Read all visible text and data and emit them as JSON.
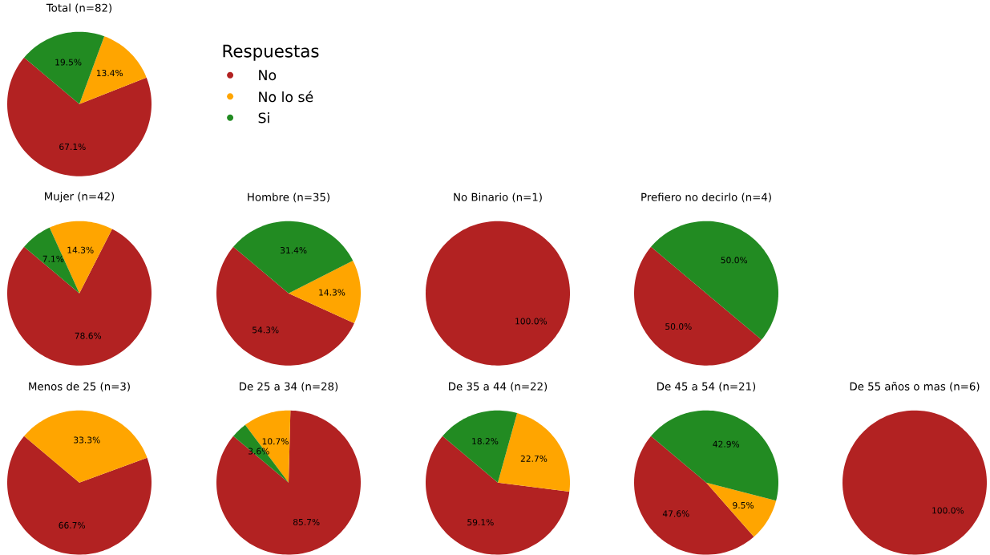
{
  "chart_data": [
    {
      "type": "pie",
      "title": "Total (n=82)",
      "categories": [
        "No",
        "No lo sé",
        "Si"
      ],
      "values": [
        67.1,
        13.4,
        19.5
      ],
      "value_labels": [
        "67.1%",
        "13.4%",
        "19.5%"
      ],
      "colors": [
        "#b22222",
        "#ffa500",
        "#228b22"
      ],
      "legend_title": "Respuestas",
      "legend": "right"
    },
    {
      "type": "pie",
      "title": "Mujer (n=42)",
      "categories": [
        null,
        null,
        null
      ],
      "values": [
        78.6,
        14.3,
        7.1
      ],
      "value_labels": [
        "78.6%",
        "14.3%",
        "7.1%"
      ],
      "colors": [
        "#b22222",
        "#ffa500",
        "#228b22"
      ]
    },
    {
      "type": "pie",
      "title": "Hombre (n=35)",
      "categories": [
        null,
        null,
        null
      ],
      "values": [
        54.3,
        14.3,
        31.4
      ],
      "value_labels": [
        "54.3%",
        "14.3%",
        "31.4%"
      ],
      "colors": [
        "#b22222",
        "#ffa500",
        "#228b22"
      ]
    },
    {
      "type": "pie",
      "title": "No Binario (n=1)",
      "categories": [
        null,
        null,
        null
      ],
      "values": [
        100,
        0,
        0
      ],
      "value_labels": [
        "100.0%",
        null,
        null
      ],
      "colors": [
        "#b22222",
        "#ffa500",
        "#228b22"
      ]
    },
    {
      "type": "pie",
      "title": "Prefiero no decirlo (n=4)",
      "categories": [
        null,
        null,
        null
      ],
      "values": [
        50,
        0,
        50
      ],
      "value_labels": [
        "50.0%",
        null,
        "50.0%"
      ],
      "colors": [
        "#b22222",
        "#ffa500",
        "#228b22"
      ]
    },
    {
      "type": "pie",
      "title": "Menos de 25 (n=3)",
      "categories": [
        null,
        null,
        null
      ],
      "values": [
        66.7,
        33.3,
        0
      ],
      "value_labels": [
        "66.7%",
        "33.3%",
        null
      ],
      "colors": [
        "#b22222",
        "#ffa500",
        "#228b22"
      ]
    },
    {
      "type": "pie",
      "title": "De 25 a 34 (n=28)",
      "categories": [
        null,
        null,
        null
      ],
      "values": [
        85.7,
        10.7,
        3.6
      ],
      "value_labels": [
        "85.7%",
        "10.7%",
        "3.6%"
      ],
      "colors": [
        "#b22222",
        "#ffa500",
        "#228b22"
      ]
    },
    {
      "type": "pie",
      "title": "De 35 a 44 (n=22)",
      "categories": [
        null,
        null,
        null
      ],
      "values": [
        59.1,
        22.7,
        18.2
      ],
      "value_labels": [
        "59.1%",
        "22.7%",
        "18.2%"
      ],
      "colors": [
        "#b22222",
        "#ffa500",
        "#228b22"
      ]
    },
    {
      "type": "pie",
      "title": "De 45 a 54 (n=21)",
      "categories": [
        null,
        null,
        null
      ],
      "values": [
        47.6,
        9.5,
        42.9
      ],
      "value_labels": [
        "47.6%",
        "9.5%",
        "42.9%"
      ],
      "colors": [
        "#b22222",
        "#ffa500",
        "#228b22"
      ]
    },
    {
      "type": "pie",
      "title": "De 55 años o mas (n=6)",
      "categories": [
        null,
        null,
        null
      ],
      "values": [
        100,
        0,
        0
      ],
      "value_labels": [
        "100.0%",
        null,
        null
      ],
      "colors": [
        "#b22222",
        "#ffa500",
        "#228b22"
      ]
    }
  ]
}
